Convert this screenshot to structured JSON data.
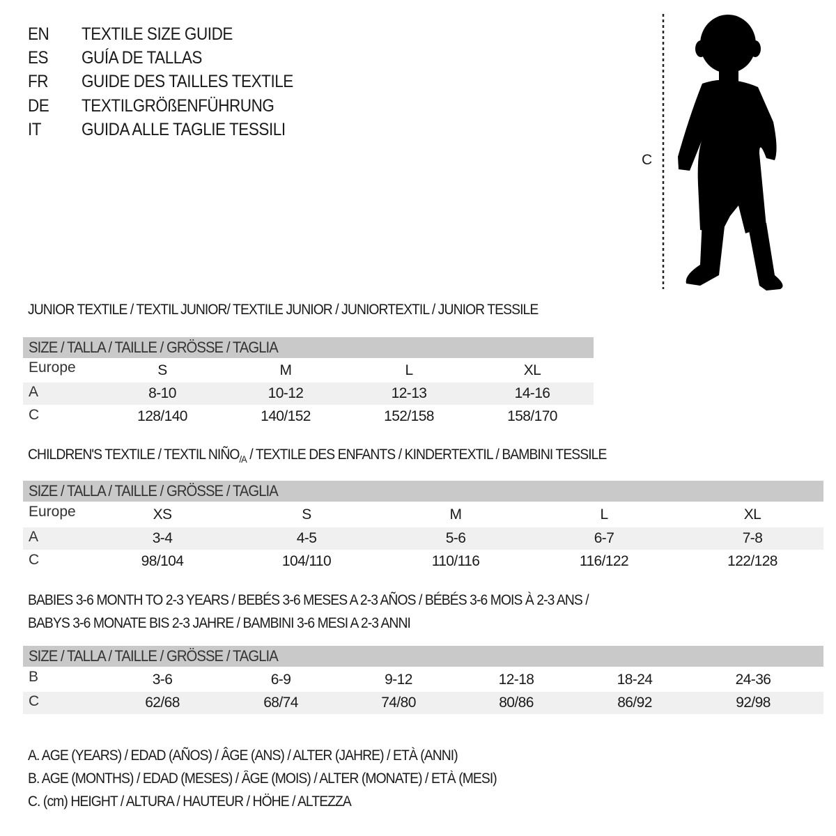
{
  "titles": [
    {
      "code": "EN",
      "text": "TEXTILE SIZE GUIDE"
    },
    {
      "code": "ES",
      "text": "GUÍA DE TALLAS"
    },
    {
      "code": "FR",
      "text": "GUIDE DES TAILLES TEXTILE"
    },
    {
      "code": "DE",
      "text": "TEXTILGRÖßENFÜHRUNG"
    },
    {
      "code": "IT",
      "text": "GUIDA ALLE TAGLIE TESSILI"
    }
  ],
  "figure": {
    "label": "C",
    "icon": "baby-silhouette-icon"
  },
  "size_header": "SIZE / TALLA / TAILLE / GRÖSSE / TAGLIA",
  "junior": {
    "title": "JUNIOR TEXTILE / TEXTIL JUNIOR/ TEXTILE JUNIOR / JUNIORTEXTIL / JUNIOR TESSILE",
    "rows": [
      {
        "label": "Europe",
        "values": [
          "S",
          "M",
          "L",
          "XL"
        ]
      },
      {
        "label": "A",
        "values": [
          "8-10",
          "10-12",
          "12-13",
          "14-16"
        ]
      },
      {
        "label": "C",
        "values": [
          "128/140",
          "140/152",
          "152/158",
          "158/170"
        ]
      }
    ]
  },
  "children": {
    "title_a": "CHILDREN'S TEXTILE / TEXTIL NIÑO",
    "title_sub": "/A",
    "title_b": " / TEXTILE DES ENFANTS / KINDERTEXTIL / BAMBINI TESSILE",
    "rows": [
      {
        "label": "Europe",
        "values": [
          "XS",
          "S",
          "M",
          "L",
          "XL"
        ]
      },
      {
        "label": "A",
        "values": [
          "3-4",
          "4-5",
          "5-6",
          "6-7",
          "7-8"
        ]
      },
      {
        "label": "C",
        "values": [
          "98/104",
          "104/110",
          "110/116",
          "116/122",
          "122/128"
        ]
      }
    ]
  },
  "babies": {
    "title_line1": "BABIES 3-6 MONTH TO 2-3 YEARS / BEBÉS 3-6 MESES A 2-3 AÑOS / BÉBÉS 3-6 MOIS À 2-3 ANS /",
    "title_line2": "BABYS 3-6 MONATE BIS 2-3 JAHRE / BAMBINI 3-6 MESI A 2-3 ANNI",
    "rows": [
      {
        "label": "B",
        "values": [
          "3-6",
          "6-9",
          "9-12",
          "12-18",
          "18-24",
          "24-36"
        ]
      },
      {
        "label": "C",
        "values": [
          "62/68",
          "68/74",
          "74/80",
          "80/86",
          "86/92",
          "92/98"
        ]
      }
    ]
  },
  "legend": [
    "A. AGE (YEARS) / EDAD (AÑOS) / ÂGE (ANS) / ALTER (JAHRE) / ETÀ (ANNI)",
    "B. AGE (MONTHS) / EDAD (MESES) / ÂGE (MOIS) / ALTER (MONATE) / ETÀ (MESI)",
    "C. (cm) HEIGHT / ALTURA / HAUTEUR / HÖHE / ALTEZZA"
  ]
}
